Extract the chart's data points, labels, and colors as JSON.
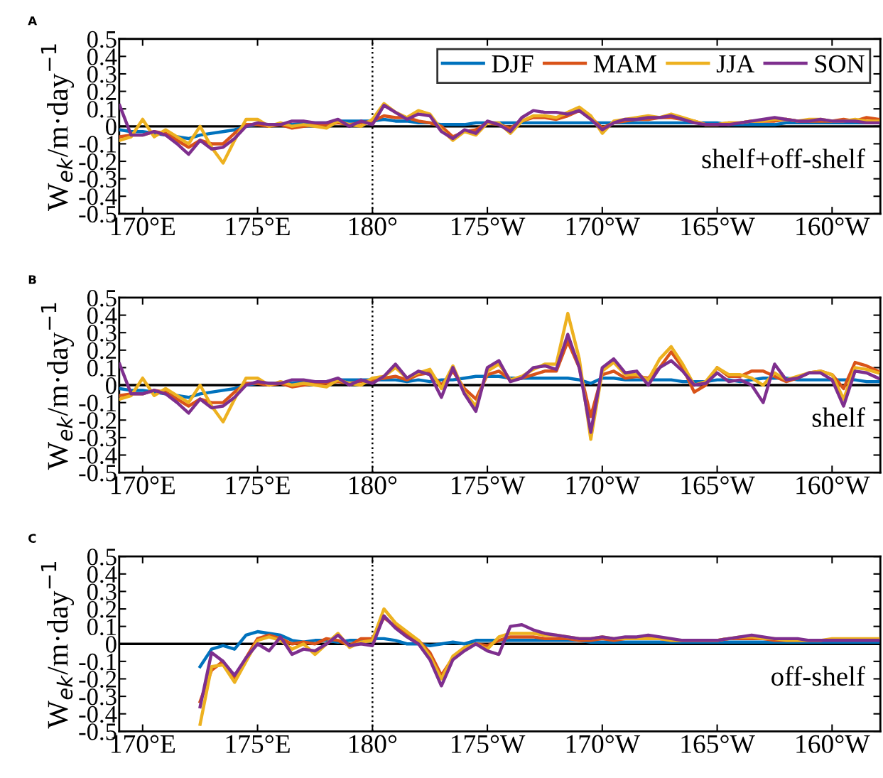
{
  "chart_data": [
    {
      "type": "line",
      "title": "A",
      "ylabel": "W$_{ek}$/m·day$^{−1}$",
      "annotations": [
        "shelf+off-shelf"
      ],
      "legend": "top right",
      "grid": false,
      "xlim": [
        168.98,
        202.1
      ],
      "ylim": [
        -0.5,
        0.5
      ],
      "xticks": [
        {
          "value": 170,
          "label": "170°E"
        },
        {
          "value": 175,
          "label": "175°E"
        },
        {
          "value": 180,
          "label": "180°"
        },
        {
          "value": 185,
          "label": "175°W"
        },
        {
          "value": 190,
          "label": "170°W"
        },
        {
          "value": 195,
          "label": "165°W"
        },
        {
          "value": 200,
          "label": "160°W"
        }
      ],
      "yticks": [
        -0.5,
        -0.4,
        -0.3,
        -0.2,
        -0.1,
        0,
        0.1,
        0.2,
        0.3,
        0.4,
        0.5
      ],
      "ref_lines": [
        {
          "axis": "y",
          "value": 0,
          "color": "#000000",
          "line_style": "solid"
        },
        {
          "axis": "x",
          "value": 180,
          "color": "#000000",
          "line_style": "dotted"
        }
      ],
      "x": [
        169,
        169.5,
        170,
        170.5,
        171,
        171.5,
        172,
        172.5,
        173,
        173.5,
        174,
        174.5,
        175,
        175.5,
        176,
        176.5,
        177,
        177.5,
        178,
        178.5,
        179,
        179.5,
        180,
        180.5,
        181,
        181.5,
        182,
        182.5,
        183,
        183.5,
        184,
        184.5,
        185,
        185.5,
        186,
        186.5,
        187,
        187.5,
        188,
        188.5,
        189,
        189.5,
        190,
        190.5,
        191,
        191.5,
        192,
        192.5,
        193,
        193.5,
        194,
        194.5,
        195,
        195.5,
        196,
        196.5,
        197,
        197.5,
        198,
        198.5,
        199,
        199.5,
        200,
        200.5,
        201,
        201.5,
        202
      ],
      "series": [
        {
          "name": "DJF",
          "color": "#0072bd",
          "values": [
            -0.02,
            -0.03,
            -0.03,
            -0.04,
            -0.05,
            -0.06,
            -0.07,
            -0.05,
            -0.04,
            -0.03,
            -0.02,
            0.0,
            0.01,
            0.01,
            0.01,
            0.01,
            0.02,
            0.02,
            0.02,
            0.03,
            0.03,
            0.03,
            0.03,
            0.04,
            0.03,
            0.03,
            0.02,
            0.02,
            0.01,
            0.01,
            0.01,
            0.02,
            0.02,
            0.02,
            0.02,
            0.02,
            0.02,
            0.02,
            0.02,
            0.02,
            0.02,
            0.02,
            0.02,
            0.02,
            0.02,
            0.02,
            0.02,
            0.02,
            0.02,
            0.02,
            0.02,
            0.02,
            0.02,
            0.01,
            0.01,
            0.01,
            0.01,
            0.01,
            0.02,
            0.02,
            0.02,
            0.02,
            0.02,
            0.02,
            0.02,
            0.02,
            0.02
          ]
        },
        {
          "name": "MAM",
          "color": "#d95319",
          "values": [
            -0.06,
            -0.05,
            -0.05,
            -0.03,
            -0.04,
            -0.08,
            -0.12,
            -0.08,
            -0.1,
            -0.1,
            -0.04,
            0.01,
            0.01,
            0.0,
            0.01,
            -0.01,
            0.0,
            0.01,
            0.01,
            0.02,
            0.01,
            0.02,
            0.03,
            0.06,
            0.05,
            0.05,
            0.03,
            0.02,
            0.0,
            -0.06,
            -0.03,
            -0.02,
            0.02,
            0.01,
            -0.01,
            0.03,
            0.05,
            0.05,
            0.04,
            0.06,
            0.09,
            0.05,
            -0.01,
            0.02,
            0.03,
            0.04,
            0.04,
            0.05,
            0.05,
            0.04,
            0.03,
            0.01,
            0.01,
            0.02,
            0.02,
            0.03,
            0.03,
            0.03,
            0.04,
            0.03,
            0.03,
            0.03,
            0.03,
            0.04,
            0.03,
            0.05,
            0.04
          ]
        },
        {
          "name": "JJA",
          "color": "#edb120",
          "values": [
            -0.08,
            -0.06,
            0.04,
            -0.06,
            -0.02,
            -0.06,
            -0.1,
            0.0,
            -0.12,
            -0.21,
            -0.08,
            0.04,
            0.04,
            0.0,
            0.02,
            0.0,
            0.01,
            0.0,
            -0.01,
            0.03,
            0.01,
            0.0,
            0.04,
            0.13,
            0.08,
            0.05,
            0.09,
            0.07,
            -0.02,
            -0.08,
            -0.03,
            -0.05,
            0.02,
            0.02,
            -0.04,
            0.03,
            0.06,
            0.06,
            0.05,
            0.08,
            0.11,
            0.06,
            -0.04,
            0.03,
            0.04,
            0.05,
            0.06,
            0.05,
            0.07,
            0.05,
            0.03,
            0.01,
            0.01,
            0.02,
            0.02,
            0.03,
            0.03,
            0.04,
            0.04,
            0.03,
            0.04,
            0.04,
            0.03,
            0.03,
            0.04,
            0.03,
            0.03
          ]
        },
        {
          "name": "SON",
          "color": "#7e2f8e",
          "values": [
            0.12,
            -0.05,
            -0.05,
            -0.03,
            -0.05,
            -0.1,
            -0.16,
            -0.08,
            -0.13,
            -0.12,
            -0.07,
            0.0,
            0.02,
            0.01,
            0.01,
            0.03,
            0.03,
            0.02,
            0.02,
            0.04,
            0.0,
            0.03,
            0.01,
            0.12,
            0.08,
            0.04,
            0.07,
            0.06,
            -0.03,
            -0.07,
            -0.02,
            -0.04,
            0.03,
            0.01,
            -0.03,
            0.05,
            0.09,
            0.08,
            0.08,
            0.07,
            0.09,
            0.04,
            -0.02,
            0.02,
            0.04,
            0.04,
            0.05,
            0.05,
            0.06,
            0.04,
            0.02,
            0.01,
            0.01,
            0.01,
            0.02,
            0.03,
            0.04,
            0.05,
            0.04,
            0.03,
            0.03,
            0.04,
            0.03,
            0.03,
            0.03,
            0.02,
            0.02
          ]
        }
      ]
    },
    {
      "type": "line",
      "title": "B",
      "ylabel": "W$_{ek}$/m·day$^{−1}$",
      "annotations": [
        "shelf"
      ],
      "grid": false,
      "xlim": [
        168.98,
        202.1
      ],
      "ylim": [
        -0.5,
        0.5
      ],
      "xticks": [
        {
          "value": 170,
          "label": "170°E"
        },
        {
          "value": 175,
          "label": "175°E"
        },
        {
          "value": 180,
          "label": "180°"
        },
        {
          "value": 185,
          "label": "175°W"
        },
        {
          "value": 190,
          "label": "170°W"
        },
        {
          "value": 195,
          "label": "165°W"
        },
        {
          "value": 200,
          "label": "160°W"
        }
      ],
      "yticks": [
        -0.5,
        -0.4,
        -0.3,
        -0.2,
        -0.1,
        0,
        0.1,
        0.2,
        0.3,
        0.4,
        0.5
      ],
      "ref_lines": [
        {
          "axis": "y",
          "value": 0,
          "color": "#000000",
          "line_style": "solid"
        },
        {
          "axis": "x",
          "value": 180,
          "color": "#000000",
          "line_style": "dotted"
        }
      ],
      "x": [
        169,
        169.5,
        170,
        170.5,
        171,
        171.5,
        172,
        172.5,
        173,
        173.5,
        174,
        174.5,
        175,
        175.5,
        176,
        176.5,
        177,
        177.5,
        178,
        178.5,
        179,
        179.5,
        180,
        180.5,
        181,
        181.5,
        182,
        182.5,
        183,
        183.5,
        184,
        184.5,
        185,
        185.5,
        186,
        186.5,
        187,
        187.5,
        188,
        188.5,
        189,
        189.5,
        190,
        190.5,
        191,
        191.5,
        192,
        192.5,
        193,
        193.5,
        194,
        194.5,
        195,
        195.5,
        196,
        196.5,
        197,
        197.5,
        198,
        198.5,
        199,
        199.5,
        200,
        200.5,
        201,
        201.5,
        202
      ],
      "series": [
        {
          "color": "#0072bd",
          "values": [
            -0.02,
            -0.03,
            -0.03,
            -0.04,
            -0.05,
            -0.06,
            -0.07,
            -0.05,
            -0.04,
            -0.03,
            -0.02,
            0.0,
            0.01,
            0.01,
            0.01,
            0.01,
            0.02,
            0.02,
            0.02,
            0.03,
            0.03,
            0.03,
            0.03,
            0.03,
            0.03,
            0.02,
            0.03,
            0.02,
            0.03,
            0.03,
            0.04,
            0.05,
            0.05,
            0.05,
            0.04,
            0.04,
            0.04,
            0.04,
            0.04,
            0.04,
            0.03,
            0.01,
            0.04,
            0.04,
            0.03,
            0.03,
            0.03,
            0.03,
            0.03,
            0.02,
            0.02,
            0.02,
            0.03,
            0.03,
            0.02,
            0.03,
            0.04,
            0.04,
            0.04,
            0.03,
            0.03,
            0.03,
            0.03,
            0.03,
            0.03,
            0.02,
            0.02
          ]
        },
        {
          "color": "#d95319",
          "values": [
            -0.06,
            -0.05,
            -0.05,
            -0.03,
            -0.04,
            -0.08,
            -0.12,
            -0.08,
            -0.1,
            -0.1,
            -0.04,
            0.01,
            0.01,
            0.0,
            0.01,
            -0.01,
            0.0,
            0.01,
            0.01,
            0.02,
            0.01,
            0.02,
            0.03,
            0.04,
            0.05,
            0.03,
            0.06,
            0.07,
            0.0,
            0.08,
            -0.02,
            -0.08,
            0.06,
            0.08,
            0.03,
            0.04,
            0.06,
            0.08,
            0.08,
            0.25,
            0.1,
            -0.18,
            0.06,
            0.08,
            0.04,
            0.05,
            0.04,
            0.1,
            0.19,
            0.1,
            -0.04,
            0.0,
            0.1,
            0.05,
            0.05,
            0.08,
            0.08,
            0.05,
            0.02,
            0.04,
            0.07,
            0.08,
            0.06,
            -0.02,
            0.13,
            0.11,
            0.08
          ]
        },
        {
          "color": "#edb120",
          "values": [
            -0.08,
            -0.06,
            0.04,
            -0.06,
            -0.02,
            -0.06,
            -0.1,
            0.0,
            -0.12,
            -0.21,
            -0.08,
            0.04,
            0.04,
            0.0,
            0.02,
            0.0,
            0.01,
            0.0,
            -0.01,
            0.03,
            0.01,
            0.0,
            0.04,
            0.05,
            0.1,
            0.04,
            0.07,
            0.09,
            -0.02,
            0.11,
            -0.04,
            -0.12,
            0.08,
            0.12,
            0.03,
            0.05,
            0.09,
            0.12,
            0.12,
            0.41,
            0.15,
            -0.31,
            0.08,
            0.13,
            0.06,
            0.06,
            0.03,
            0.15,
            0.22,
            0.12,
            0.0,
            0.02,
            0.1,
            0.06,
            0.06,
            0.04,
            0.0,
            0.07,
            0.03,
            0.05,
            0.07,
            0.08,
            0.06,
            -0.08,
            0.1,
            0.09,
            0.07
          ]
        },
        {
          "color": "#7e2f8e",
          "values": [
            0.12,
            -0.05,
            -0.05,
            -0.03,
            -0.05,
            -0.1,
            -0.16,
            -0.08,
            -0.13,
            -0.12,
            -0.07,
            0.0,
            0.02,
            0.01,
            0.01,
            0.03,
            0.03,
            0.02,
            0.02,
            0.04,
            0.0,
            0.03,
            0.01,
            0.05,
            0.12,
            0.04,
            0.08,
            0.06,
            -0.07,
            0.1,
            -0.05,
            -0.15,
            0.1,
            0.14,
            0.02,
            0.04,
            0.1,
            0.11,
            0.09,
            0.29,
            0.1,
            -0.27,
            0.1,
            0.15,
            0.07,
            0.08,
            0.0,
            0.1,
            0.14,
            0.08,
            0.0,
            0.01,
            0.07,
            0.02,
            0.03,
            0.0,
            -0.1,
            0.12,
            0.03,
            0.04,
            0.07,
            0.07,
            0.03,
            -0.12,
            0.08,
            0.07,
            0.04
          ]
        }
      ]
    },
    {
      "type": "line",
      "title": "C",
      "ylabel": "W$_{ek}$/m·day$^{−1}$",
      "annotations": [
        "off-shelf"
      ],
      "grid": false,
      "xlim": [
        168.98,
        202.1
      ],
      "ylim": [
        -0.5,
        0.5
      ],
      "xticks": [
        {
          "value": 170,
          "label": "170°E"
        },
        {
          "value": 175,
          "label": "175°E"
        },
        {
          "value": 180,
          "label": "180°"
        },
        {
          "value": 185,
          "label": "175°W"
        },
        {
          "value": 190,
          "label": "170°W"
        },
        {
          "value": 195,
          "label": "165°W"
        },
        {
          "value": 200,
          "label": "160°W"
        }
      ],
      "yticks": [
        -0.5,
        -0.4,
        -0.3,
        -0.2,
        -0.1,
        0,
        0.1,
        0.2,
        0.3,
        0.4,
        0.5
      ],
      "ref_lines": [
        {
          "axis": "y",
          "value": 0,
          "color": "#000000",
          "line_style": "solid"
        },
        {
          "axis": "x",
          "value": 180,
          "color": "#000000",
          "line_style": "dotted"
        }
      ],
      "x": [
        172.5,
        173,
        173.5,
        174,
        174.5,
        175,
        175.5,
        176,
        176.5,
        177,
        177.5,
        178,
        178.5,
        179,
        179.5,
        180,
        180.5,
        181,
        181.5,
        182,
        182.5,
        183,
        183.5,
        184,
        184.5,
        185,
        185.5,
        186,
        186.5,
        187,
        187.5,
        188,
        188.5,
        189,
        189.5,
        190,
        190.5,
        191,
        191.5,
        192,
        192.5,
        193,
        193.5,
        194,
        194.5,
        195,
        195.5,
        196,
        196.5,
        197,
        197.5,
        198,
        198.5,
        199,
        199.5,
        200,
        200.5,
        201,
        201.5,
        202
      ],
      "series": [
        {
          "color": "#0072bd",
          "values": [
            -0.13,
            -0.03,
            -0.01,
            -0.03,
            0.05,
            0.07,
            0.06,
            0.05,
            0.02,
            0.01,
            0.02,
            0.02,
            0.01,
            0.02,
            0.02,
            0.03,
            0.03,
            0.02,
            0.0,
            0.0,
            -0.01,
            0.0,
            0.01,
            0.0,
            0.02,
            0.02,
            0.02,
            0.02,
            0.02,
            0.02,
            0.02,
            0.02,
            0.02,
            0.02,
            0.01,
            0.01,
            0.01,
            0.01,
            0.01,
            0.01,
            0.01,
            0.01,
            0.01,
            0.01,
            0.01,
            0.01,
            0.01,
            0.01,
            0.01,
            0.01,
            0.01,
            0.01,
            0.01,
            0.01,
            0.01,
            0.01,
            0.01,
            0.01,
            0.01,
            0.01
          ]
        },
        {
          "color": "#d95319",
          "values": [
            -0.33,
            -0.15,
            -0.1,
            -0.2,
            -0.08,
            0.03,
            0.05,
            0.03,
            0.0,
            0.01,
            0.0,
            0.03,
            0.02,
            -0.01,
            0.03,
            0.03,
            0.15,
            0.1,
            0.05,
            0.02,
            -0.05,
            -0.18,
            -0.08,
            -0.03,
            0.0,
            -0.01,
            0.02,
            0.04,
            0.04,
            0.04,
            0.03,
            0.03,
            0.03,
            0.02,
            0.02,
            0.03,
            0.02,
            0.03,
            0.03,
            0.04,
            0.03,
            0.02,
            0.02,
            0.02,
            0.02,
            0.02,
            0.03,
            0.03,
            0.03,
            0.03,
            0.02,
            0.02,
            0.02,
            0.02,
            0.02,
            null,
            null,
            null,
            null,
            null
          ]
        },
        {
          "color": "#edb120",
          "values": [
            -0.46,
            -0.13,
            -0.12,
            -0.22,
            -0.1,
            0.02,
            0.04,
            0.02,
            -0.03,
            0.0,
            -0.06,
            0.0,
            0.06,
            -0.02,
            0.01,
            0.02,
            0.2,
            0.12,
            0.07,
            0.02,
            -0.07,
            -0.2,
            -0.07,
            -0.02,
            0.0,
            -0.03,
            0.04,
            0.06,
            0.06,
            0.06,
            0.05,
            0.05,
            0.04,
            0.03,
            0.03,
            0.04,
            0.03,
            0.03,
            0.03,
            0.03,
            0.03,
            0.02,
            0.02,
            0.02,
            0.02,
            0.02,
            0.03,
            0.04,
            0.04,
            0.03,
            0.03,
            0.02,
            0.02,
            0.02,
            0.02,
            0.03,
            0.03,
            0.03,
            0.03,
            0.03
          ]
        },
        {
          "color": "#7e2f8e",
          "values": [
            -0.36,
            -0.05,
            -0.1,
            -0.18,
            -0.08,
            0.0,
            -0.04,
            0.04,
            -0.06,
            -0.03,
            -0.04,
            0.0,
            0.05,
            -0.01,
            0.0,
            -0.01,
            0.16,
            0.09,
            0.04,
            0.0,
            -0.09,
            -0.24,
            -0.09,
            -0.04,
            0.0,
            -0.04,
            -0.06,
            0.1,
            0.11,
            0.08,
            0.06,
            0.05,
            0.04,
            0.03,
            0.03,
            0.04,
            0.03,
            0.04,
            0.04,
            0.05,
            0.04,
            0.03,
            0.02,
            0.02,
            0.02,
            0.02,
            0.03,
            0.04,
            0.05,
            0.04,
            0.03,
            0.03,
            0.03,
            0.02,
            0.02,
            0.02,
            0.02,
            0.02,
            0.02,
            0.02
          ]
        }
      ]
    }
  ]
}
